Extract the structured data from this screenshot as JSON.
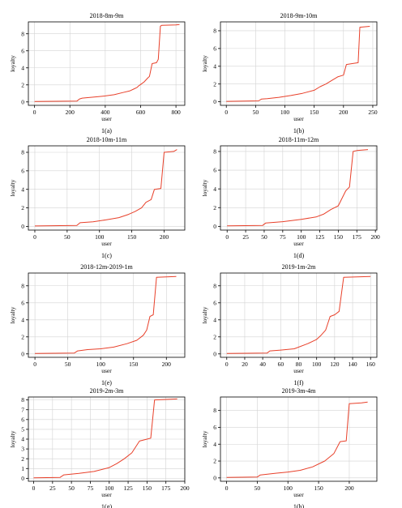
{
  "colors": {
    "line": "#e8402a",
    "grid": "#d3d3d3",
    "axis": "#000000"
  },
  "chart_data": [
    {
      "type": "line",
      "title": "2018-8m-9m",
      "caption": "1(a)",
      "xlabel": "user",
      "ylabel": "loyalty",
      "xlim": [
        -35,
        850
      ],
      "ylim": [
        -0.4,
        9.4
      ],
      "xticks": [
        0,
        200,
        400,
        600,
        800
      ],
      "yticks": [
        0,
        2,
        4,
        6,
        8
      ],
      "grid": true,
      "x": [
        0,
        240,
        255,
        270,
        300,
        350,
        400,
        450,
        500,
        540,
        560,
        580,
        590,
        610,
        620,
        640,
        650,
        665,
        690,
        700,
        712,
        720,
        800,
        820
      ],
      "y": [
        0.05,
        0.1,
        0.35,
        0.45,
        0.5,
        0.6,
        0.7,
        0.85,
        1.1,
        1.3,
        1.5,
        1.7,
        1.9,
        2.2,
        2.35,
        2.8,
        3.0,
        4.5,
        4.6,
        5.0,
        8.9,
        9.0,
        9.05,
        9.1
      ]
    },
    {
      "type": "line",
      "title": "2018-9m-10m",
      "caption": "1(b)",
      "xlabel": "user",
      "ylabel": "loyalty",
      "xlim": [
        -10,
        257
      ],
      "ylim": [
        -0.4,
        9.0
      ],
      "xticks": [
        0,
        50,
        100,
        150,
        200,
        250
      ],
      "yticks": [
        0,
        2,
        4,
        6,
        8
      ],
      "grid": true,
      "x": [
        0,
        55,
        60,
        70,
        90,
        110,
        130,
        150,
        160,
        170,
        180,
        190,
        200,
        205,
        215,
        225,
        228,
        245
      ],
      "y": [
        0.05,
        0.1,
        0.3,
        0.35,
        0.5,
        0.7,
        0.95,
        1.3,
        1.7,
        2.0,
        2.4,
        2.8,
        3.0,
        4.2,
        4.3,
        4.4,
        8.4,
        8.5
      ]
    },
    {
      "type": "line",
      "title": "2018-10m-11m",
      "caption": "1(c)",
      "xlabel": "user",
      "ylabel": "loyalty",
      "xlim": [
        -10,
        232
      ],
      "ylim": [
        -0.4,
        8.7
      ],
      "xticks": [
        0,
        50,
        100,
        150,
        200
      ],
      "yticks": [
        0,
        2,
        4,
        6,
        8
      ],
      "grid": true,
      "x": [
        0,
        65,
        70,
        90,
        110,
        130,
        145,
        155,
        165,
        172,
        180,
        185,
        195,
        200,
        215,
        220
      ],
      "y": [
        0.05,
        0.1,
        0.4,
        0.5,
        0.7,
        0.95,
        1.3,
        1.6,
        2.0,
        2.6,
        2.9,
        4.0,
        4.1,
        8.0,
        8.1,
        8.3
      ]
    },
    {
      "type": "line",
      "title": "2018-11m-12m",
      "caption": "1(d)",
      "xlabel": "user",
      "ylabel": "loyalty",
      "xlim": [
        -9,
        202
      ],
      "ylim": [
        -0.4,
        8.6
      ],
      "xticks": [
        0,
        25,
        50,
        75,
        100,
        125,
        150,
        175,
        200
      ],
      "yticks": [
        0,
        2,
        4,
        6,
        8
      ],
      "grid": true,
      "x": [
        0,
        48,
        52,
        75,
        100,
        120,
        130,
        140,
        150,
        160,
        165,
        170,
        175,
        190
      ],
      "y": [
        0.05,
        0.1,
        0.35,
        0.5,
        0.75,
        1.0,
        1.3,
        1.8,
        2.2,
        3.8,
        4.2,
        8.0,
        8.1,
        8.2
      ]
    },
    {
      "type": "line",
      "title": "2018-12m-2019-1m",
      "caption": "1(e)",
      "xlabel": "user",
      "ylabel": "loyalty",
      "xlim": [
        -10,
        228
      ],
      "ylim": [
        -0.4,
        9.5
      ],
      "xticks": [
        0,
        50,
        100,
        150,
        200
      ],
      "yticks": [
        0,
        2,
        4,
        6,
        8
      ],
      "grid": true,
      "x": [
        0,
        60,
        65,
        80,
        100,
        120,
        140,
        155,
        165,
        170,
        175,
        180,
        185,
        200,
        215
      ],
      "y": [
        0.05,
        0.1,
        0.35,
        0.5,
        0.6,
        0.8,
        1.2,
        1.6,
        2.2,
        2.8,
        4.4,
        4.6,
        9.0,
        9.05,
        9.1
      ]
    },
    {
      "type": "line",
      "title": "2019-1m-2m",
      "caption": "1(f)",
      "xlabel": "user",
      "ylabel": "loyalty",
      "xlim": [
        -7,
        167
      ],
      "ylim": [
        -0.4,
        9.5
      ],
      "xticks": [
        0,
        20,
        40,
        60,
        80,
        100,
        120,
        140,
        160
      ],
      "yticks": [
        0,
        2,
        4,
        6,
        8
      ],
      "grid": true,
      "x": [
        0,
        45,
        48,
        60,
        75,
        90,
        100,
        105,
        110,
        115,
        120,
        125,
        130,
        145,
        160
      ],
      "y": [
        0.05,
        0.1,
        0.35,
        0.45,
        0.6,
        1.2,
        1.7,
        2.2,
        2.8,
        4.4,
        4.6,
        5.0,
        9.0,
        9.05,
        9.1
      ]
    },
    {
      "type": "line",
      "title": "2019-2m-3m",
      "caption": "1(g)",
      "xlabel": "user",
      "ylabel": "loyalty",
      "xlim": [
        -7,
        200
      ],
      "ylim": [
        -0.3,
        8.3
      ],
      "xticks": [
        0,
        25,
        50,
        75,
        100,
        125,
        150,
        175,
        200
      ],
      "yticks": [
        0,
        1,
        2,
        3,
        4,
        5,
        6,
        7,
        8
      ],
      "grid": true,
      "x": [
        0,
        35,
        40,
        60,
        80,
        100,
        110,
        120,
        130,
        140,
        150,
        155,
        160,
        175,
        190
      ],
      "y": [
        0.05,
        0.1,
        0.35,
        0.5,
        0.7,
        1.1,
        1.5,
        2.0,
        2.6,
        3.8,
        4.0,
        4.1,
        8.0,
        8.05,
        8.1
      ]
    },
    {
      "type": "line",
      "title": "2019-3m-4m",
      "caption": "1(h)",
      "xlabel": "user",
      "ylabel": "loyalty",
      "xlim": [
        -10,
        245
      ],
      "ylim": [
        -0.4,
        9.6
      ],
      "xticks": [
        0,
        50,
        100,
        150,
        200
      ],
      "yticks": [
        0,
        2,
        4,
        6,
        8
      ],
      "grid": true,
      "x": [
        0,
        50,
        55,
        80,
        100,
        120,
        140,
        160,
        175,
        185,
        195,
        200,
        220,
        230
      ],
      "y": [
        0.05,
        0.1,
        0.35,
        0.55,
        0.7,
        0.9,
        1.3,
        2.0,
        2.9,
        4.3,
        4.4,
        8.8,
        8.9,
        9.0
      ]
    }
  ]
}
